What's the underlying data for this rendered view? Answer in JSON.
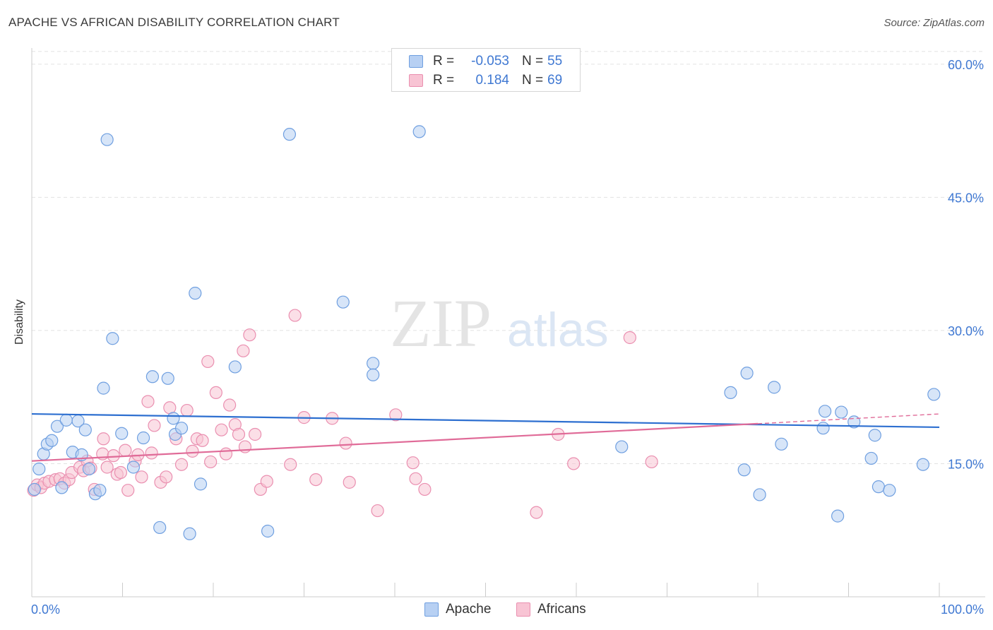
{
  "title": "APACHE VS AFRICAN DISABILITY CORRELATION CHART",
  "source": "Source: ZipAtlas.com",
  "watermark": {
    "zip": "ZIP",
    "atlas": "atlas"
  },
  "colors": {
    "apache_fill": "#b7d0f3",
    "apache_stroke": "#6f9fe0",
    "apache_line": "#2d6fd0",
    "africans_fill": "#f8c4d4",
    "africans_stroke": "#ea8fb0",
    "africans_line": "#e06b98",
    "tick_label": "#3f78d2",
    "grid": "#e2e2e2"
  },
  "legend": {
    "rows": [
      {
        "r_label": "R =",
        "r_value": "-0.053",
        "n_label": "N =",
        "n_value": "55"
      },
      {
        "r_label": "R =",
        "r_value": "0.184",
        "n_label": "N =",
        "n_value": "69"
      }
    ]
  },
  "bottom_legend": [
    "Apache",
    "Africans"
  ],
  "chart_data": {
    "type": "scatter",
    "title": "APACHE VS AFRICAN DISABILITY CORRELATION CHART",
    "xlabel": "",
    "ylabel": "Disability",
    "xlim": [
      0,
      100
    ],
    "ylim": [
      0,
      61.5
    ],
    "x_tick_labels": [
      "0.0%",
      "100.0%"
    ],
    "y_ticks": [
      15,
      30,
      45,
      60
    ],
    "y_tick_labels": [
      "15.0%",
      "30.0%",
      "45.0%",
      "60.0%"
    ],
    "grid": true,
    "legend_position": "top-center",
    "series": [
      {
        "name": "Apache",
        "r": -0.053,
        "n": 55,
        "trend": {
          "x": [
            0,
            100
          ],
          "y": [
            20.6,
            19.1
          ]
        },
        "points": [
          [
            0.3,
            12.1
          ],
          [
            0.8,
            14.4
          ],
          [
            1.3,
            16.1
          ],
          [
            1.7,
            17.2
          ],
          [
            2.2,
            17.6
          ],
          [
            2.8,
            19.2
          ],
          [
            3.3,
            12.3
          ],
          [
            3.8,
            19.9
          ],
          [
            4.5,
            16.3
          ],
          [
            5.1,
            19.8
          ],
          [
            5.5,
            16.0
          ],
          [
            5.9,
            18.8
          ],
          [
            6.3,
            14.4
          ],
          [
            7.0,
            11.6
          ],
          [
            7.5,
            12.0
          ],
          [
            7.9,
            23.5
          ],
          [
            8.3,
            51.5
          ],
          [
            8.9,
            29.1
          ],
          [
            9.9,
            18.4
          ],
          [
            11.2,
            14.6
          ],
          [
            12.3,
            17.9
          ],
          [
            13.3,
            24.8
          ],
          [
            14.1,
            7.8
          ],
          [
            15.0,
            24.6
          ],
          [
            15.6,
            20.1
          ],
          [
            15.8,
            18.3
          ],
          [
            16.5,
            19.0
          ],
          [
            18.0,
            34.2
          ],
          [
            17.4,
            7.1
          ],
          [
            18.6,
            12.7
          ],
          [
            22.4,
            25.9
          ],
          [
            26.0,
            7.4
          ],
          [
            28.4,
            52.1
          ],
          [
            34.3,
            33.2
          ],
          [
            37.6,
            26.3
          ],
          [
            37.6,
            25.0
          ],
          [
            42.7,
            52.4
          ],
          [
            65.0,
            16.9
          ],
          [
            77.0,
            23.0
          ],
          [
            78.5,
            14.3
          ],
          [
            78.8,
            25.2
          ],
          [
            80.2,
            11.5
          ],
          [
            81.8,
            23.6
          ],
          [
            82.6,
            17.2
          ],
          [
            87.4,
            20.9
          ],
          [
            87.2,
            19.0
          ],
          [
            88.8,
            9.1
          ],
          [
            89.2,
            20.8
          ],
          [
            90.6,
            19.7
          ],
          [
            92.5,
            15.6
          ],
          [
            92.9,
            18.2
          ],
          [
            93.3,
            12.4
          ],
          [
            94.5,
            12.0
          ],
          [
            98.2,
            14.9
          ],
          [
            99.4,
            22.8
          ]
        ]
      },
      {
        "name": "Africans",
        "r": 0.184,
        "n": 69,
        "trend": {
          "x": [
            0,
            80
          ],
          "y": [
            15.3,
            19.5
          ]
        },
        "trend_dashed": {
          "x": [
            80,
            100
          ],
          "y": [
            19.5,
            20.6
          ]
        },
        "points": [
          [
            0.2,
            12.0
          ],
          [
            0.6,
            12.6
          ],
          [
            1.0,
            12.3
          ],
          [
            1.4,
            12.8
          ],
          [
            1.9,
            13.0
          ],
          [
            2.6,
            13.2
          ],
          [
            3.1,
            13.3
          ],
          [
            3.6,
            12.8
          ],
          [
            4.1,
            13.2
          ],
          [
            4.4,
            14.0
          ],
          [
            5.3,
            14.6
          ],
          [
            5.7,
            14.2
          ],
          [
            6.1,
            15.3
          ],
          [
            6.5,
            14.5
          ],
          [
            6.9,
            12.1
          ],
          [
            7.8,
            16.1
          ],
          [
            7.9,
            17.8
          ],
          [
            8.3,
            14.6
          ],
          [
            9.0,
            15.9
          ],
          [
            9.4,
            13.8
          ],
          [
            9.8,
            14.0
          ],
          [
            10.3,
            16.5
          ],
          [
            10.6,
            12.0
          ],
          [
            11.4,
            15.3
          ],
          [
            11.7,
            16.0
          ],
          [
            12.1,
            13.5
          ],
          [
            12.8,
            22.0
          ],
          [
            13.2,
            16.2
          ],
          [
            13.5,
            19.3
          ],
          [
            14.2,
            12.9
          ],
          [
            14.8,
            13.5
          ],
          [
            15.2,
            21.3
          ],
          [
            15.9,
            17.8
          ],
          [
            16.5,
            14.9
          ],
          [
            17.1,
            21.0
          ],
          [
            17.7,
            16.4
          ],
          [
            18.2,
            17.8
          ],
          [
            18.8,
            17.6
          ],
          [
            19.4,
            26.5
          ],
          [
            19.7,
            15.2
          ],
          [
            20.3,
            23.0
          ],
          [
            20.9,
            18.8
          ],
          [
            21.4,
            16.1
          ],
          [
            21.8,
            21.6
          ],
          [
            22.4,
            19.4
          ],
          [
            22.8,
            18.3
          ],
          [
            23.3,
            27.7
          ],
          [
            23.5,
            16.9
          ],
          [
            24.0,
            29.5
          ],
          [
            24.6,
            18.3
          ],
          [
            25.2,
            12.1
          ],
          [
            25.9,
            13.0
          ],
          [
            28.5,
            14.9
          ],
          [
            29.0,
            31.7
          ],
          [
            30.0,
            20.2
          ],
          [
            31.3,
            13.2
          ],
          [
            33.1,
            20.1
          ],
          [
            34.6,
            17.3
          ],
          [
            35.0,
            12.9
          ],
          [
            38.1,
            9.7
          ],
          [
            40.1,
            20.5
          ],
          [
            42.0,
            15.1
          ],
          [
            42.3,
            13.3
          ],
          [
            43.3,
            12.1
          ],
          [
            55.6,
            9.5
          ],
          [
            58.0,
            18.3
          ],
          [
            59.7,
            15.0
          ],
          [
            65.9,
            29.2
          ],
          [
            68.3,
            15.2
          ]
        ]
      }
    ]
  }
}
